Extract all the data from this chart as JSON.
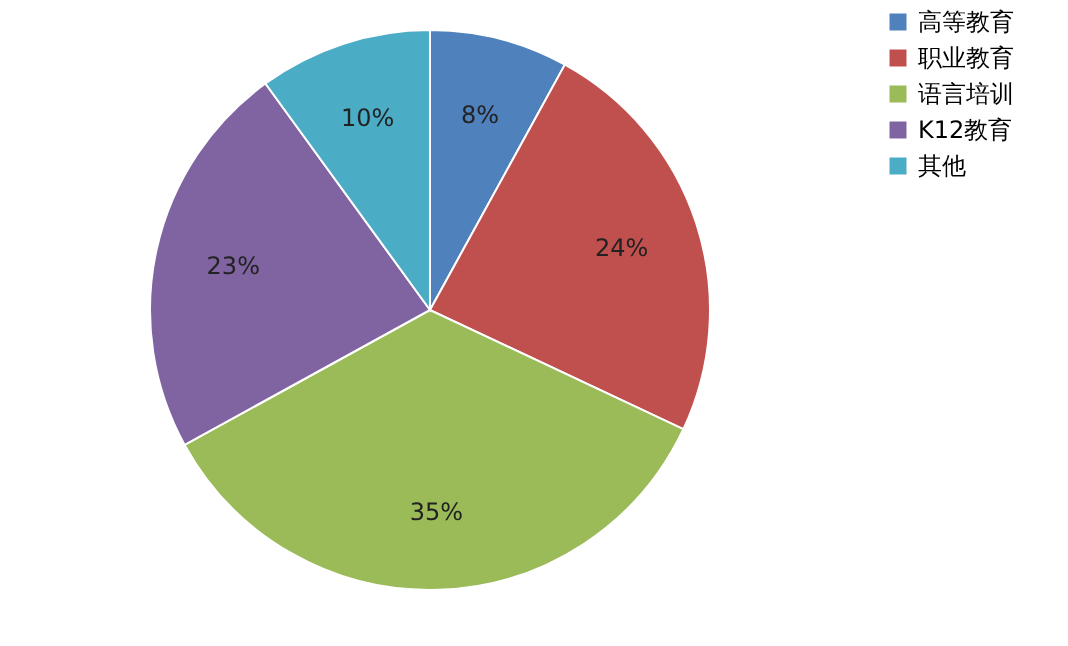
{
  "chart_data": {
    "type": "pie",
    "categories": [
      "高等教育",
      "职业教育",
      "语言培训",
      "K12教育",
      "其他"
    ],
    "values": [
      8,
      24,
      35,
      23,
      10
    ],
    "colors": [
      "#4f81bd",
      "#c0504d",
      "#9bbb59",
      "#8064a2",
      "#4bacc6"
    ],
    "value_labels": [
      "8%",
      "24%",
      "35%",
      "23%",
      "10%"
    ],
    "legend": "right"
  }
}
